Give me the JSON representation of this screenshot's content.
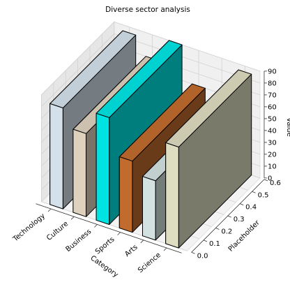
{
  "chart_data": {
    "type": "bar3d",
    "title": "Diverse sector analysis",
    "xlabel": "Category",
    "ylabel": "Placeholder",
    "zlabel": "Value",
    "categories": [
      "Technology",
      "Culture",
      "Business",
      "Sports",
      "Arts",
      "Science"
    ],
    "values": [
      85,
      70,
      90,
      60,
      50,
      85
    ],
    "colors": [
      "#d4e1eb",
      "#ded1bd",
      "#00e3e3",
      "#c16c2e",
      "#d3e1e1",
      "#deddc1"
    ],
    "z_ticks": [
      0,
      10,
      20,
      30,
      40,
      50,
      60,
      70,
      80,
      90
    ],
    "y_ticks": [
      "0.0",
      "0.1",
      "0.2",
      "0.3",
      "0.4",
      "0.5",
      "0.6"
    ],
    "zlim": [
      0,
      90
    ],
    "ylim": [
      0,
      0.6
    ],
    "grid": true
  }
}
